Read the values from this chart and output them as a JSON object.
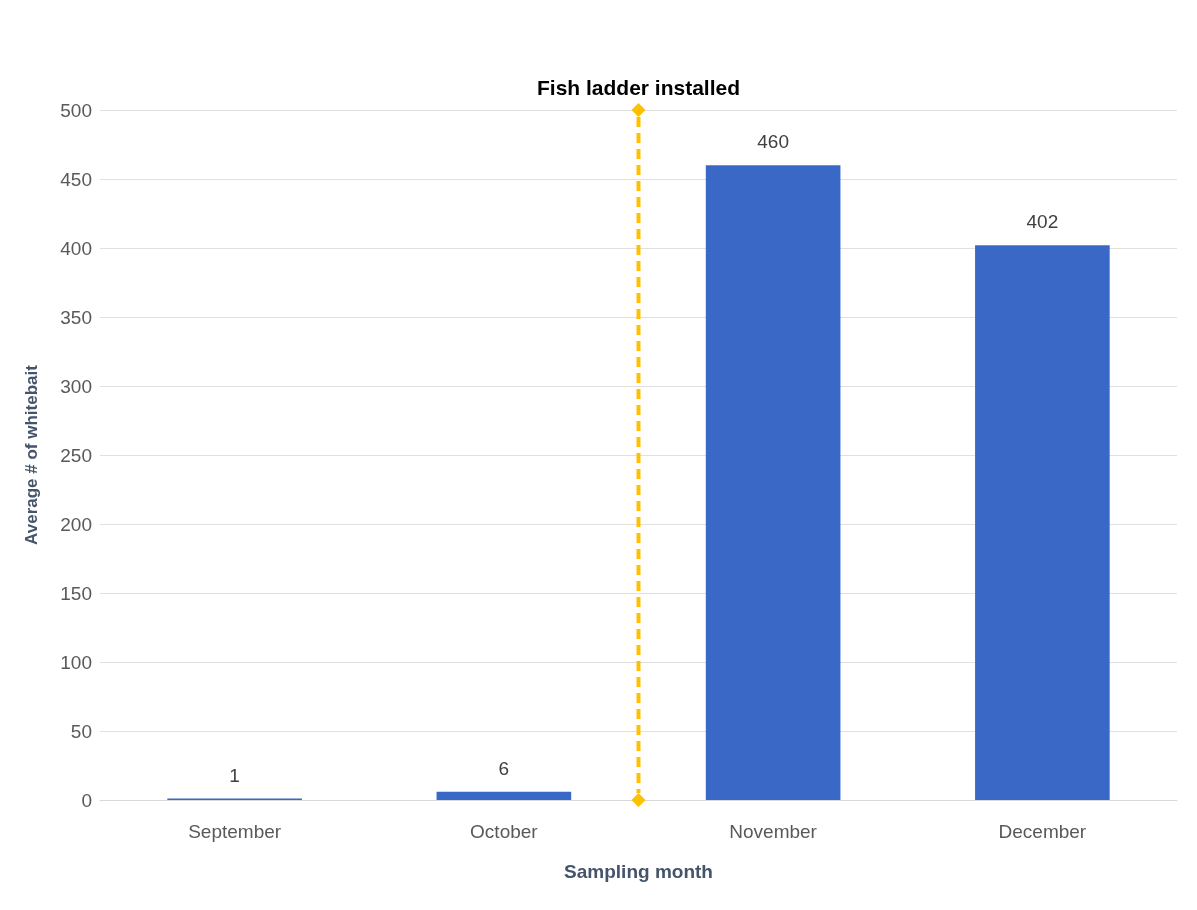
{
  "chart_data": {
    "type": "bar",
    "xlabel": "Sampling month",
    "ylabel": "Average # of whitebait",
    "categories": [
      "September",
      "October",
      "November",
      "December"
    ],
    "values": [
      1,
      6,
      460,
      402
    ],
    "color": "#3a68c6",
    "ylim": [
      0,
      500
    ],
    "yticks": [
      0,
      50,
      100,
      150,
      200,
      250,
      300,
      350,
      400,
      450,
      500
    ],
    "grid": "y",
    "data_labels": true,
    "annotations": [
      "Fish ladder installed"
    ]
  }
}
